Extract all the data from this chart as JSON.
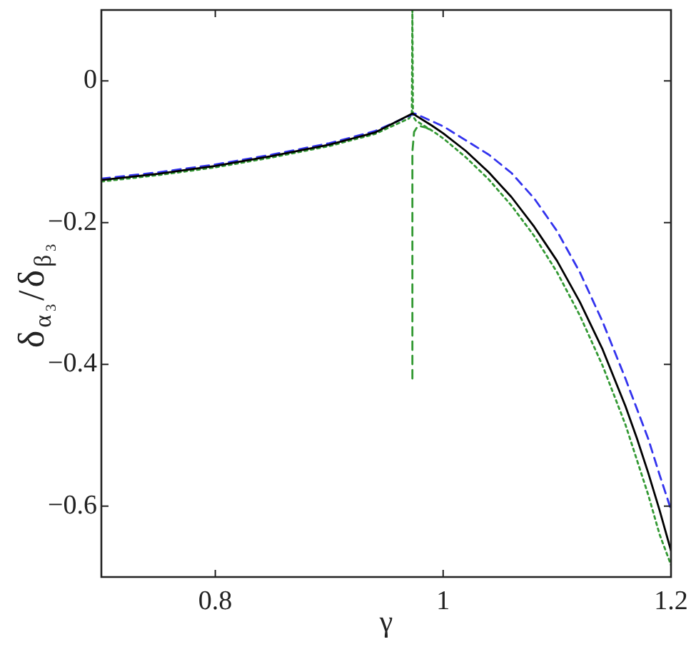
{
  "chart_data": {
    "type": "line",
    "xlabel": "γ",
    "ylabel": "δ$_{α₃}$/δ$_{β₃}$",
    "xlim": [
      0.7,
      1.2
    ],
    "ylim": [
      -0.7,
      0.1
    ],
    "xticks": [
      0.8,
      1,
      1.2
    ],
    "yticks": [
      {
        "value": -0.6,
        "label": "−0.6"
      },
      {
        "value": -0.4,
        "label": "−0.4"
      },
      {
        "value": -0.2,
        "label": "−0.2"
      },
      0
    ],
    "series": [
      {
        "color": "#000000",
        "line_style": "solid",
        "x": [
          0.7,
          0.75,
          0.8,
          0.85,
          0.9,
          0.94,
          0.973,
          0.99,
          1.0,
          1.02,
          1.04,
          1.06,
          1.08,
          1.1,
          1.12,
          1.14,
          1.16,
          1.17,
          1.18,
          1.19,
          1.2
        ],
        "values": [
          -0.14,
          -0.131,
          -0.12,
          -0.106,
          -0.09,
          -0.073,
          -0.046,
          -0.063,
          -0.074,
          -0.099,
          -0.129,
          -0.164,
          -0.206,
          -0.254,
          -0.312,
          -0.379,
          -0.459,
          -0.504,
          -0.553,
          -0.606,
          -0.663
        ]
      },
      {
        "color": "#3333ee",
        "line_style": "dashed",
        "x": [
          0.7,
          0.75,
          0.8,
          0.85,
          0.9,
          0.94,
          0.975,
          1.0,
          1.02,
          1.04,
          1.06,
          1.08,
          1.1,
          1.12,
          1.14,
          1.16,
          1.18,
          1.19,
          1.2
        ],
        "values": [
          -0.138,
          -0.129,
          -0.118,
          -0.104,
          -0.088,
          -0.071,
          -0.046,
          -0.064,
          -0.084,
          -0.104,
          -0.13,
          -0.166,
          -0.212,
          -0.27,
          -0.34,
          -0.42,
          -0.505,
          -0.556,
          -0.605
        ]
      },
      {
        "color": "#339933",
        "line_style": "dotted",
        "x": [
          0.7,
          0.75,
          0.8,
          0.85,
          0.9,
          0.94,
          0.97,
          0.9725,
          0.973,
          0.9735,
          0.976,
          0.99,
          1.0,
          1.02,
          1.04,
          1.06,
          1.08,
          1.1,
          1.12,
          1.14,
          1.16,
          1.18,
          1.19,
          1.2
        ],
        "values": [
          -0.142,
          -0.133,
          -0.122,
          -0.108,
          -0.092,
          -0.075,
          -0.053,
          -0.047,
          0.1,
          -0.05,
          -0.056,
          -0.07,
          -0.081,
          -0.108,
          -0.139,
          -0.176,
          -0.219,
          -0.27,
          -0.331,
          -0.402,
          -0.485,
          -0.584,
          -0.64,
          -0.683
        ]
      },
      {
        "color": "#339933",
        "line_style": "dashed",
        "x": [
          0.973,
          0.973,
          0.9745,
          0.978,
          0.985,
          0.99
        ],
        "values": [
          -0.42,
          -0.1,
          -0.072,
          -0.063,
          -0.066,
          -0.07
        ]
      }
    ]
  }
}
